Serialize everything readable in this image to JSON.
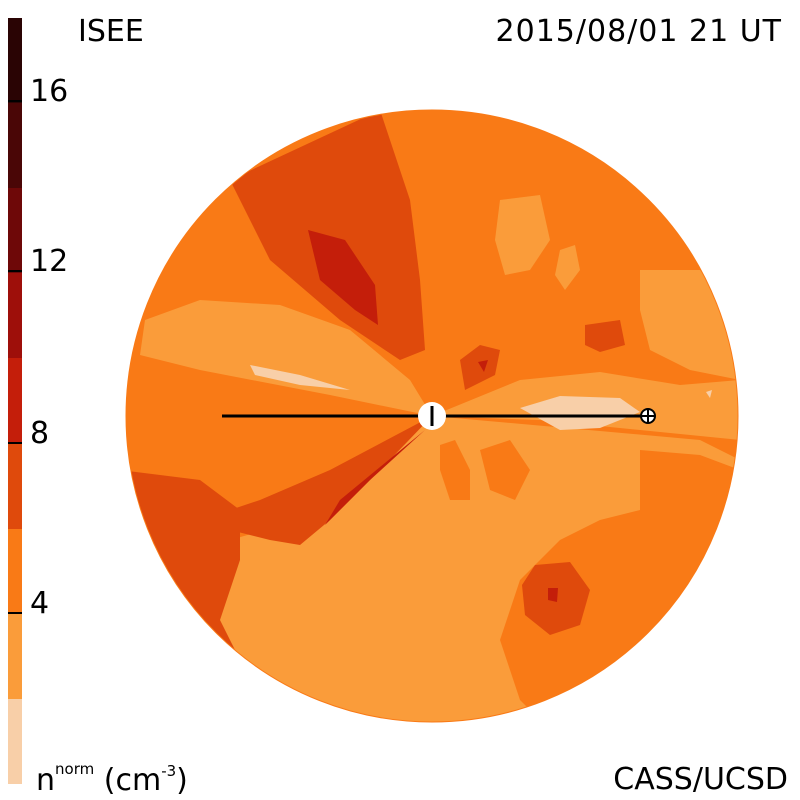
{
  "header": {
    "org_label": "ISEE",
    "timestamp": "2015/08/01 21 UT"
  },
  "footer": {
    "credit": "CASS/UCSD",
    "colorbar_title_main": "n",
    "colorbar_title_sup": "norm",
    "colorbar_title_unit_open": "(cm",
    "colorbar_title_unit_sup": "-3",
    "colorbar_title_unit_close": ")"
  },
  "colorbar": {
    "quantity": "normalized solar wind density",
    "range": [
      0,
      18
    ],
    "ticks": [
      {
        "value": 4,
        "label": "4"
      },
      {
        "value": 8,
        "label": "8"
      },
      {
        "value": 12,
        "label": "12"
      },
      {
        "value": 16,
        "label": "16"
      }
    ],
    "bands": [
      {
        "from": 0,
        "to": 2,
        "color": "#f8cfa8"
      },
      {
        "from": 2,
        "to": 4,
        "color": "#fa9c3a"
      },
      {
        "from": 4,
        "to": 6,
        "color": "#f97a16"
      },
      {
        "from": 6,
        "to": 8,
        "color": "#df4a0c"
      },
      {
        "from": 8,
        "to": 10,
        "color": "#c41e0a"
      },
      {
        "from": 10,
        "to": 12,
        "color": "#9e0f0a"
      },
      {
        "from": 12,
        "to": 14,
        "color": "#6e0808"
      },
      {
        "from": 14,
        "to": 16,
        "color": "#4a0606"
      },
      {
        "from": 16,
        "to": 18,
        "color": "#2a0404"
      }
    ]
  },
  "map": {
    "view": "ecliptic plane density (top-down, Sun at center)",
    "sun_symbol": "sun-marker",
    "earth_symbol": "earth-marker"
  }
}
